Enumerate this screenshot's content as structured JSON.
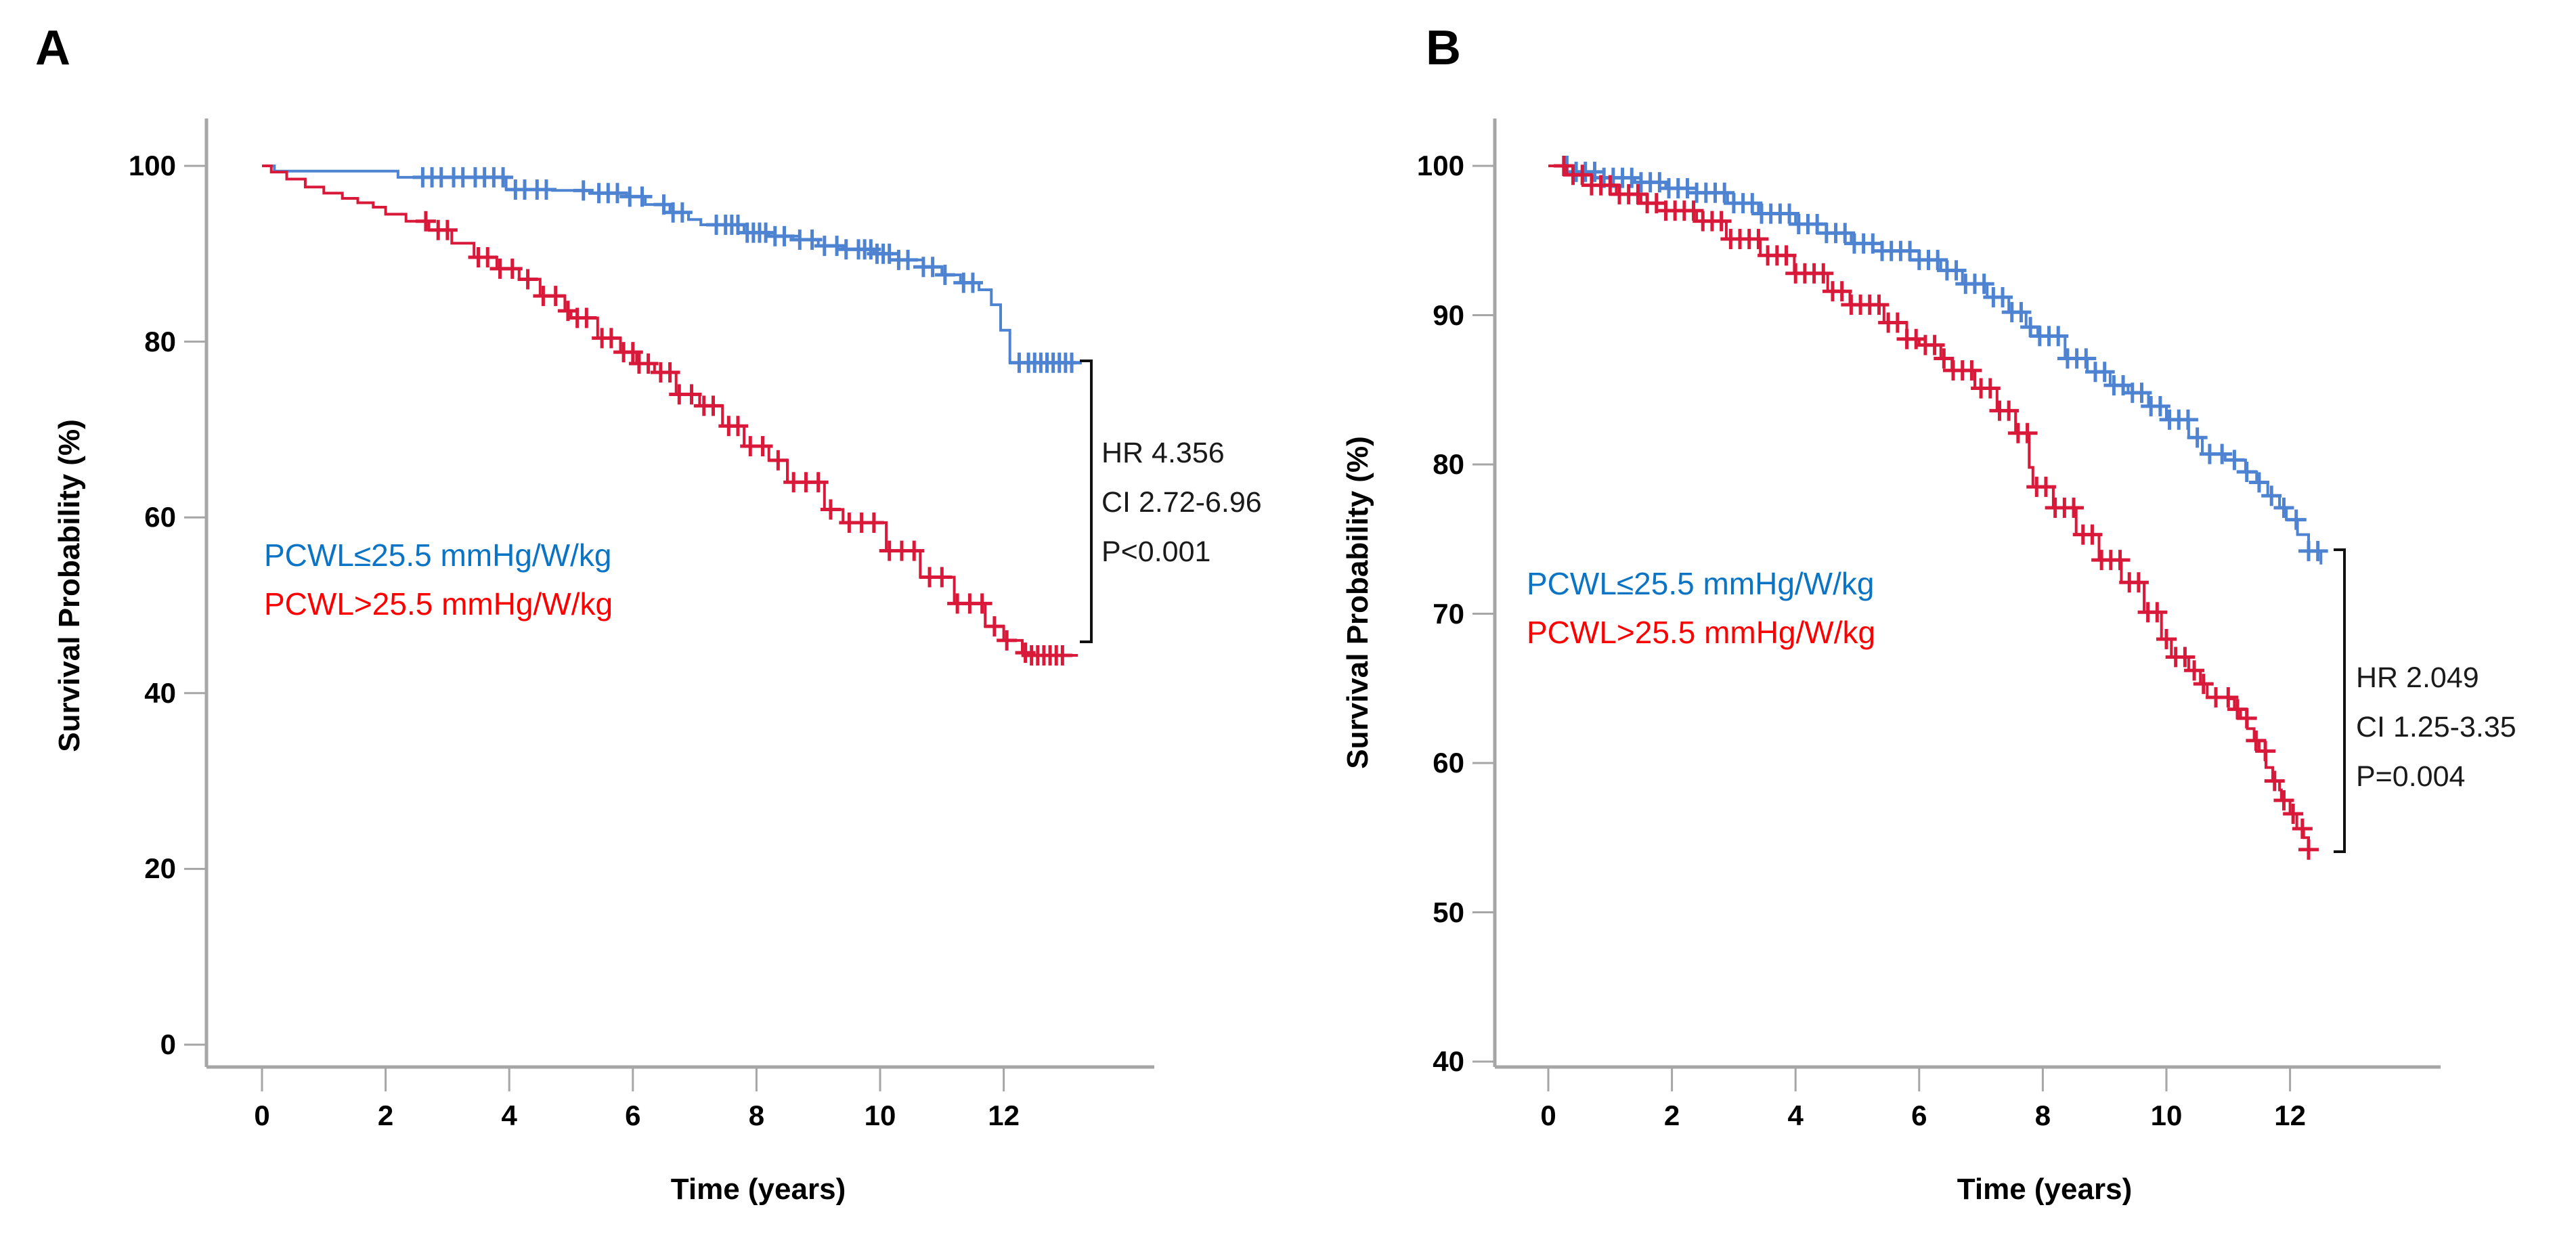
{
  "figure": {
    "panel_a_letter": "A",
    "panel_b_letter": "B"
  },
  "colors": {
    "curve_blue": "#4e83d1",
    "curve_red": "#d81939",
    "legend_blue_text": "#0b74c4",
    "legend_red_text": "#fe0000",
    "axis_gray": "#a6a6a6",
    "bracket_black": "#111111"
  },
  "chart_data": [
    {
      "panel": "A",
      "type": "line",
      "subtype": "kaplan-meier-step",
      "title": "",
      "xlabel": "Time (years)",
      "ylabel": "Survival Probability (%)",
      "xlim": [
        0,
        14
      ],
      "ylim": [
        0,
        100
      ],
      "x_ticks": [
        0,
        2,
        4,
        6,
        8,
        10,
        12
      ],
      "y_ticks": [
        100,
        80,
        60,
        40,
        20,
        0
      ],
      "grid": false,
      "legend_position": "inside-left-middle",
      "annotation": {
        "hr": "HR 4.356",
        "ci": "CI 2.72-6.96",
        "p": "P<0.001"
      },
      "series": [
        {
          "name": "PCWL≤25.5 mmHg/W/kg",
          "color_role": "curve_blue",
          "points": [
            [
              0,
              100
            ],
            [
              0.2,
              99.4
            ],
            [
              2.2,
              98.7
            ],
            [
              3.95,
              97.3
            ],
            [
              4.7,
              97.2
            ],
            [
              5.3,
              96.9
            ],
            [
              5.9,
              96.5
            ],
            [
              6.2,
              95.6
            ],
            [
              6.6,
              94.7
            ],
            [
              6.9,
              93.9
            ],
            [
              7.1,
              93.3
            ],
            [
              7.8,
              92.4
            ],
            [
              8.2,
              92.0
            ],
            [
              8.7,
              91.6
            ],
            [
              9.0,
              90.9
            ],
            [
              9.4,
              90.5
            ],
            [
              9.9,
              90.0
            ],
            [
              10.3,
              89.3
            ],
            [
              10.7,
              88.5
            ],
            [
              11.0,
              87.6
            ],
            [
              11.3,
              86.7
            ],
            [
              11.6,
              85.9
            ],
            [
              11.8,
              84.2
            ],
            [
              11.95,
              81.3
            ],
            [
              12.1,
              77.6
            ],
            [
              13.2,
              77.6
            ]
          ],
          "censor_times": [
            2.6,
            2.75,
            2.9,
            3.1,
            3.25,
            3.45,
            3.6,
            3.75,
            3.9,
            4.1,
            4.25,
            4.45,
            4.6,
            5.2,
            5.45,
            5.6,
            5.75,
            5.95,
            6.15,
            6.5,
            6.65,
            6.8,
            7.35,
            7.5,
            7.6,
            7.7,
            7.85,
            7.95,
            8.05,
            8.15,
            8.3,
            8.45,
            8.7,
            8.9,
            9.1,
            9.3,
            9.45,
            9.65,
            9.75,
            9.85,
            9.95,
            10.05,
            10.15,
            10.3,
            10.45,
            10.7,
            10.85,
            11.05,
            11.35,
            11.5,
            12.25,
            12.4,
            12.5,
            12.6,
            12.7,
            12.8,
            12.9,
            13.0,
            13.1
          ]
        },
        {
          "name": "PCWL>25.5 mmHg/W/kg",
          "color_role": "curve_red",
          "points": [
            [
              0,
              100
            ],
            [
              0.15,
              99.3
            ],
            [
              0.4,
              98.5
            ],
            [
              0.7,
              97.6
            ],
            [
              1.0,
              96.9
            ],
            [
              1.3,
              96.3
            ],
            [
              1.55,
              95.8
            ],
            [
              1.8,
              95.3
            ],
            [
              2.0,
              94.5
            ],
            [
              2.33,
              93.7
            ],
            [
              2.7,
              92.7
            ],
            [
              3.07,
              91.2
            ],
            [
              3.43,
              89.6
            ],
            [
              3.8,
              88.3
            ],
            [
              4.16,
              87.1
            ],
            [
              4.5,
              85.2
            ],
            [
              4.9,
              83.5
            ],
            [
              5.0,
              82.7
            ],
            [
              5.43,
              80.4
            ],
            [
              5.8,
              78.8
            ],
            [
              6.06,
              77.5
            ],
            [
              6.35,
              76.5
            ],
            [
              6.7,
              74.0
            ],
            [
              7.08,
              72.7
            ],
            [
              7.45,
              70.4
            ],
            [
              7.8,
              68.1
            ],
            [
              8.2,
              66.5
            ],
            [
              8.5,
              64.0
            ],
            [
              9.1,
              60.9
            ],
            [
              9.4,
              59.4
            ],
            [
              10.1,
              56.2
            ],
            [
              10.65,
              53.2
            ],
            [
              11.2,
              50.2
            ],
            [
              11.7,
              47.6
            ],
            [
              12.0,
              46.0
            ],
            [
              12.3,
              44.6
            ],
            [
              12.45,
              44.3
            ],
            [
              13.2,
              44.3
            ]
          ],
          "censor_times": [
            2.65,
            2.85,
            3.0,
            3.5,
            3.65,
            3.85,
            4.05,
            4.3,
            4.55,
            4.75,
            4.95,
            5.1,
            5.25,
            5.5,
            5.65,
            5.85,
            6.0,
            6.1,
            6.25,
            6.45,
            6.6,
            6.75,
            6.95,
            7.15,
            7.3,
            7.55,
            7.7,
            7.9,
            8.1,
            8.35,
            8.6,
            8.8,
            9.0,
            9.2,
            9.5,
            9.7,
            9.9,
            10.15,
            10.35,
            10.55,
            10.8,
            11.0,
            11.25,
            11.45,
            11.65,
            11.85,
            12.05,
            12.35,
            12.45,
            12.55,
            12.65,
            12.75,
            12.85,
            12.95
          ]
        }
      ]
    },
    {
      "panel": "B",
      "type": "line",
      "subtype": "kaplan-meier-step",
      "title": "",
      "xlabel": "Time (years)",
      "ylabel": "Survival Probability (%)",
      "xlim": [
        0,
        14
      ],
      "ylim": [
        40,
        100
      ],
      "x_ticks": [
        0,
        2,
        4,
        6,
        8,
        10,
        12
      ],
      "y_ticks": [
        100,
        90,
        80,
        70,
        60,
        50,
        40
      ],
      "grid": false,
      "legend_position": "inside-left-middle",
      "annotation": {
        "hr": "HR 2.049",
        "ci": "CI 1.25-3.35",
        "p": "P=0.004"
      },
      "series": [
        {
          "name": "PCWL≤25.5 mmHg/W/kg",
          "color_role": "curve_blue",
          "points": [
            [
              0,
              100
            ],
            [
              0.4,
              99.6
            ],
            [
              0.9,
              99.2
            ],
            [
              1.4,
              98.9
            ],
            [
              1.9,
              98.5
            ],
            [
              2.4,
              98.2
            ],
            [
              2.9,
              97.5
            ],
            [
              3.4,
              96.8
            ],
            [
              4.0,
              96.1
            ],
            [
              4.5,
              95.5
            ],
            [
              4.9,
              94.8
            ],
            [
              5.4,
              94.3
            ],
            [
              6.0,
              93.7
            ],
            [
              6.35,
              93.0
            ],
            [
              6.7,
              92.1
            ],
            [
              7.1,
              91.2
            ],
            [
              7.45,
              90.2
            ],
            [
              7.73,
              89.2
            ],
            [
              7.92,
              88.6
            ],
            [
              8.36,
              87.1
            ],
            [
              8.72,
              86.2
            ],
            [
              9.09,
              85.3
            ],
            [
              9.38,
              84.8
            ],
            [
              9.71,
              83.9
            ],
            [
              10.0,
              83.0
            ],
            [
              10.36,
              81.8
            ],
            [
              10.58,
              80.7
            ],
            [
              10.95,
              80.3
            ],
            [
              11.28,
              79.5
            ],
            [
              11.46,
              78.8
            ],
            [
              11.64,
              77.9
            ],
            [
              11.83,
              77.1
            ],
            [
              11.94,
              76.3
            ],
            [
              12.12,
              75.3
            ],
            [
              12.3,
              74.2
            ],
            [
              12.5,
              73.3
            ]
          ],
          "censor_times": [
            0.3,
            0.45,
            0.6,
            0.75,
            0.9,
            1.05,
            1.2,
            1.35,
            1.5,
            1.65,
            1.8,
            1.95,
            2.1,
            2.25,
            2.4,
            2.55,
            2.7,
            2.85,
            3.0,
            3.15,
            3.3,
            3.45,
            3.6,
            3.75,
            3.9,
            4.05,
            4.2,
            4.35,
            4.5,
            4.65,
            4.8,
            4.95,
            5.1,
            5.25,
            5.4,
            5.55,
            5.7,
            5.85,
            6.0,
            6.15,
            6.3,
            6.45,
            6.6,
            6.75,
            6.9,
            7.05,
            7.2,
            7.35,
            7.5,
            7.65,
            7.8,
            7.95,
            8.1,
            8.25,
            8.4,
            8.55,
            8.7,
            8.85,
            9.0,
            9.15,
            9.3,
            9.45,
            9.6,
            9.75,
            9.9,
            10.05,
            10.2,
            10.35,
            10.5,
            10.7,
            10.9,
            11.1,
            11.3,
            11.5,
            11.7,
            11.9,
            12.1,
            12.3,
            12.45
          ]
        },
        {
          "name": "PCWL>25.5 mmHg/W/kg",
          "color_role": "curve_red",
          "points": [
            [
              0,
              100
            ],
            [
              0.3,
              99.4
            ],
            [
              0.7,
              98.7
            ],
            [
              1.1,
              98.1
            ],
            [
              1.5,
              97.5
            ],
            [
              1.9,
              97.0
            ],
            [
              2.4,
              96.3
            ],
            [
              2.88,
              95.1
            ],
            [
              3.43,
              94.0
            ],
            [
              3.98,
              92.8
            ],
            [
              4.52,
              91.6
            ],
            [
              4.88,
              90.7
            ],
            [
              5.43,
              89.5
            ],
            [
              5.8,
              88.4
            ],
            [
              6.0,
              88.0
            ],
            [
              6.35,
              87.1
            ],
            [
              6.53,
              86.3
            ],
            [
              6.9,
              85.1
            ],
            [
              7.26,
              83.6
            ],
            [
              7.56,
              82.1
            ],
            [
              7.78,
              79.8
            ],
            [
              7.84,
              78.5
            ],
            [
              8.17,
              77.1
            ],
            [
              8.54,
              75.3
            ],
            [
              8.91,
              73.6
            ],
            [
              9.27,
              72.1
            ],
            [
              9.64,
              70.1
            ],
            [
              9.92,
              68.3
            ],
            [
              10.08,
              67.1
            ],
            [
              10.36,
              66.2
            ],
            [
              10.55,
              65.3
            ],
            [
              10.66,
              64.4
            ],
            [
              11.02,
              64.3
            ],
            [
              11.1,
              63.6
            ],
            [
              11.2,
              63.0
            ],
            [
              11.31,
              62.3
            ],
            [
              11.42,
              61.5
            ],
            [
              11.5,
              60.8
            ],
            [
              11.61,
              59.7
            ],
            [
              11.72,
              58.8
            ],
            [
              11.83,
              58.2
            ],
            [
              11.86,
              57.5
            ],
            [
              12.0,
              56.6
            ],
            [
              12.11,
              55.6
            ],
            [
              12.22,
              55.0
            ],
            [
              12.3,
              54.2
            ]
          ],
          "censor_times": [
            0.25,
            0.4,
            0.55,
            0.7,
            0.85,
            1.0,
            1.15,
            1.3,
            1.45,
            1.6,
            1.75,
            1.9,
            2.05,
            2.2,
            2.35,
            2.5,
            2.65,
            2.8,
            2.95,
            3.1,
            3.25,
            3.4,
            3.55,
            3.7,
            3.85,
            4.0,
            4.15,
            4.3,
            4.45,
            4.6,
            4.75,
            4.9,
            5.05,
            5.2,
            5.35,
            5.5,
            5.65,
            5.8,
            5.95,
            6.1,
            6.25,
            6.4,
            6.55,
            6.7,
            6.85,
            7.0,
            7.15,
            7.3,
            7.45,
            7.6,
            7.75,
            7.9,
            8.05,
            8.2,
            8.35,
            8.5,
            8.65,
            8.8,
            8.95,
            9.1,
            9.25,
            9.4,
            9.55,
            9.7,
            9.85,
            10.0,
            10.15,
            10.3,
            10.45,
            10.6,
            10.8,
            11.0,
            11.15,
            11.3,
            11.45,
            11.6,
            11.75,
            11.9,
            12.05,
            12.2,
            12.3
          ]
        }
      ]
    }
  ]
}
